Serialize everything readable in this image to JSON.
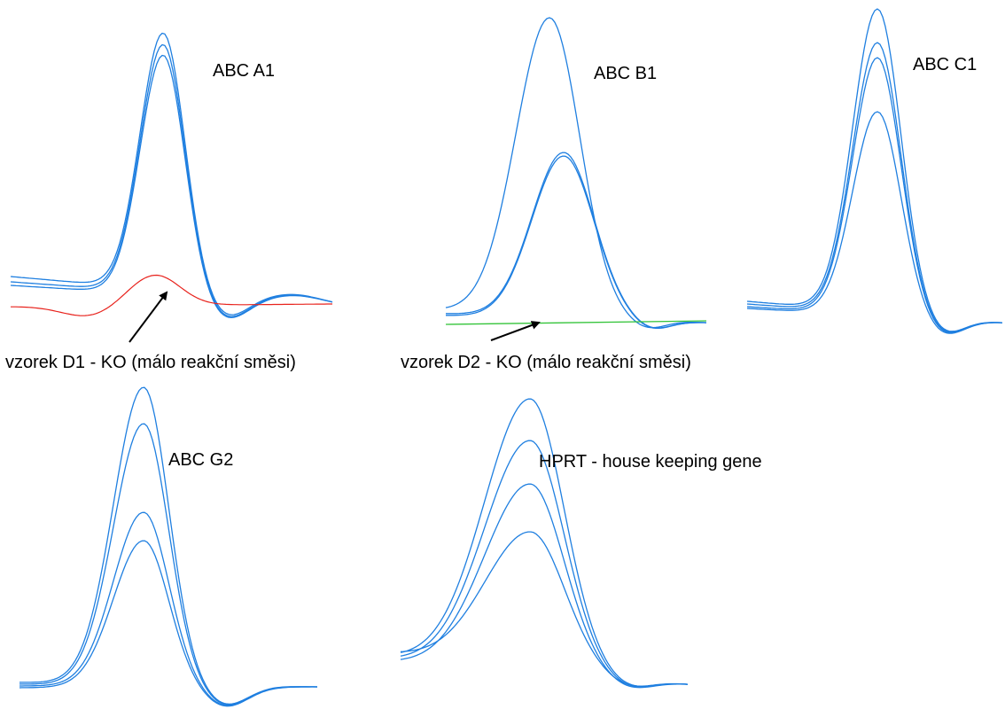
{
  "labels": {
    "abc_a1": "ABC A1",
    "abc_b1": "ABC B1",
    "abc_c1": "ABC C1",
    "abc_g2": "ABC G2",
    "hprt": "HPRT - house keeping gene",
    "note_d1": "vzorek D1 - KO (málo reakční směsi)",
    "note_d2": "vzorek D2 - KO (málo reakční směsi)"
  },
  "colors": {
    "curve": "#1f7fe0",
    "failed_d1": "#e8231d",
    "failed_d2": "#34c43a",
    "arrow": "#000000"
  }
}
